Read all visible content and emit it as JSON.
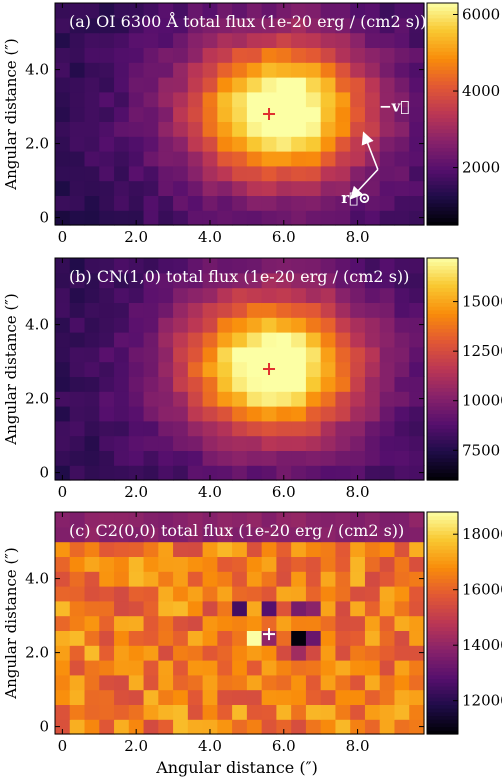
{
  "figure": {
    "shared_xlabel": "Angular distance (″)"
  },
  "chart_data": [
    {
      "type": "heatmap",
      "title": "(a) OI 6300 Å total flux (1e-20 erg / (cm2 s))",
      "xlabel": "",
      "ylabel": "Angular distance (″)",
      "xlim": [
        -0.2,
        9.8
      ],
      "ylim": [
        -0.2,
        5.8
      ],
      "x_ticks": [
        0,
        2.0,
        4.0,
        6.0,
        8.0
      ],
      "x_tick_labels": [
        "0",
        "2.0",
        "4.0",
        "6.0",
        "8.0"
      ],
      "y_ticks": [
        0,
        2.0,
        4.0
      ],
      "y_tick_labels": [
        "0",
        "2.0",
        "4.0"
      ],
      "colorbar": {
        "min": 500,
        "max": 6300,
        "ticks": [
          2000,
          4000,
          6000
        ],
        "tick_labels": [
          "2000",
          "4000",
          "6000"
        ],
        "colormap": "inferno"
      },
      "grid_shape": [
        15,
        25
      ],
      "peak_value": 6200,
      "peak_x": 5.9,
      "peak_y": 2.9,
      "marker": {
        "symbol": "+",
        "x": 5.6,
        "y": 2.8,
        "color": "#e03030"
      },
      "annotations": [
        {
          "label": "−v⃗",
          "x": 8.8,
          "y": 2.6
        },
        {
          "label": "r⃗⊙",
          "x": 8.1,
          "y": 0.4
        }
      ]
    },
    {
      "type": "heatmap",
      "title": "(b) CN(1,0) total flux (1e-20 erg / (cm2 s))",
      "xlabel": "",
      "ylabel": "Angular distance (″)",
      "xlim": [
        -0.2,
        9.8
      ],
      "ylim": [
        -0.2,
        5.8
      ],
      "x_ticks": [
        0,
        2.0,
        4.0,
        6.0,
        8.0
      ],
      "x_tick_labels": [
        "0",
        "2.0",
        "4.0",
        "6.0",
        "8.0"
      ],
      "y_ticks": [
        0,
        2.0,
        4.0
      ],
      "y_tick_labels": [
        "0",
        "2.0",
        "4.0"
      ],
      "colorbar": {
        "min": 6000,
        "max": 17200,
        "ticks": [
          7500,
          10000,
          12500,
          15000
        ],
        "tick_labels": [
          "7500",
          "10000",
          "12500",
          "15000"
        ],
        "colormap": "inferno"
      },
      "grid_shape": [
        15,
        25
      ],
      "peak_value": 17000,
      "peak_x": 5.7,
      "peak_y": 2.9,
      "marker": {
        "symbol": "+",
        "x": 5.6,
        "y": 2.8,
        "color": "#e03030"
      }
    },
    {
      "type": "heatmap",
      "title": "(c) C2(0,0) total flux (1e-20 erg / (cm2 s))",
      "xlabel": "Angular distance (″)",
      "ylabel": "Angular distance (″)",
      "xlim": [
        -0.2,
        9.8
      ],
      "ylim": [
        -0.2,
        5.8
      ],
      "x_ticks": [
        0,
        2.0,
        4.0,
        6.0,
        8.0
      ],
      "x_tick_labels": [
        "0",
        "2.0",
        "4.0",
        "6.0",
        "8.0"
      ],
      "y_ticks": [
        0,
        2.0,
        4.0
      ],
      "y_tick_labels": [
        "0",
        "2.0",
        "4.0"
      ],
      "colorbar": {
        "min": 10800,
        "max": 18800,
        "ticks": [
          12000,
          14000,
          16000,
          18000
        ],
        "tick_labels": [
          "12000",
          "14000",
          "16000",
          "18000"
        ],
        "colormap": "inferno"
      },
      "grid_shape": [
        15,
        25
      ],
      "background_value": 16500,
      "bright_cell": {
        "x": 5.2,
        "y": 2.5,
        "value": 18800
      },
      "dark_cells": [
        {
          "x": 6.4,
          "y": 2.5,
          "value": 10900
        },
        {
          "x": 4.8,
          "y": 3.1,
          "value": 12500
        },
        {
          "x": 5.5,
          "y": 3.1,
          "value": 12800
        },
        {
          "x": 6.4,
          "y": 3.1,
          "value": 13500
        },
        {
          "x": 6.9,
          "y": 3.1,
          "value": 13900
        },
        {
          "x": 5.6,
          "y": 2.5,
          "value": 14000
        },
        {
          "x": 6.8,
          "y": 2.5,
          "value": 13200
        },
        {
          "x": 6.4,
          "y": 2.1,
          "value": 14300
        }
      ],
      "marker": {
        "symbol": "+",
        "x": 5.6,
        "y": 2.5,
        "color": "#ffffff"
      }
    }
  ]
}
